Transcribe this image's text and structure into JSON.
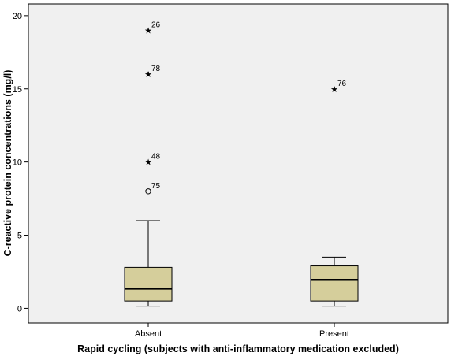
{
  "chart_data": {
    "type": "boxplot",
    "title": "",
    "xlabel": "Rapid cycling (subjects with anti-inflammatory medication excluded)",
    "ylabel": "C-reactive protein concentrations (mg/l)",
    "ylim": [
      -1,
      20.8
    ],
    "yticks": [
      0,
      5,
      10,
      15,
      20
    ],
    "grid": false,
    "legend": "none",
    "colors": {
      "plot_background": "#f0f0f0",
      "box_fill": "#d5ce9b",
      "stroke": "#000000"
    },
    "categories": [
      "Absent",
      "Present"
    ],
    "boxes": [
      {
        "category": "Absent",
        "whisker_low": 0.15,
        "q1": 0.5,
        "median": 1.35,
        "q3": 2.8,
        "whisker_high": 6.0,
        "outliers": [
          {
            "value": 8.0,
            "marker": "circle",
            "label": "75"
          },
          {
            "value": 10.0,
            "marker": "star",
            "label": "48"
          },
          {
            "value": 16.0,
            "marker": "star",
            "label": "78"
          },
          {
            "value": 19.0,
            "marker": "star",
            "label": "26"
          }
        ]
      },
      {
        "category": "Present",
        "whisker_low": 0.15,
        "q1": 0.5,
        "median": 1.95,
        "q3": 2.9,
        "whisker_high": 3.5,
        "outliers": [
          {
            "value": 15.0,
            "marker": "star",
            "label": "76"
          }
        ]
      }
    ]
  }
}
